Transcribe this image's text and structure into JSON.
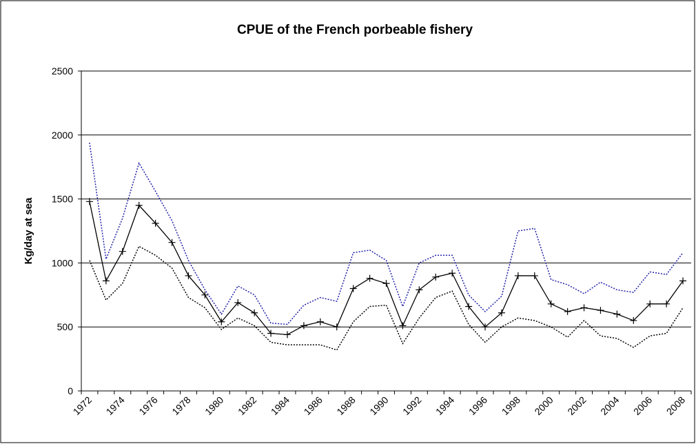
{
  "chart_data": {
    "type": "line",
    "title": "CPUE of the French porbeable fishery",
    "y_label": "Kg/day at sea",
    "categories": [
      "1972",
      null,
      "1974",
      null,
      "1976",
      null,
      "1978",
      null,
      "1980",
      null,
      "1982",
      null,
      "1984",
      null,
      "1986",
      null,
      "1988",
      null,
      "1990",
      null,
      "1992",
      null,
      "1994",
      null,
      "1996",
      null,
      "1998",
      null,
      "2000",
      null,
      "2002",
      null,
      "2004",
      null,
      "2006",
      null,
      "2008"
    ],
    "series": [
      {
        "color": "#000000",
        "dash": false,
        "marker": "plus",
        "values": [
          1480,
          860,
          1090,
          1450,
          1310,
          1160,
          900,
          750,
          540,
          690,
          610,
          450,
          440,
          510,
          540,
          500,
          800,
          880,
          840,
          510,
          790,
          890,
          920,
          660,
          500,
          610,
          900,
          900,
          680,
          620,
          650,
          630,
          600,
          550,
          680,
          680,
          860
        ]
      },
      {
        "color": "#1f1fa8",
        "dash": true,
        "marker": "none",
        "values": [
          1940,
          1030,
          1350,
          1780,
          1560,
          1330,
          1020,
          790,
          600,
          820,
          750,
          530,
          520,
          670,
          730,
          700,
          1080,
          1100,
          1020,
          660,
          1000,
          1060,
          1060,
          750,
          620,
          740,
          1250,
          1270,
          870,
          830,
          760,
          850,
          790,
          770,
          930,
          910,
          1080
        ]
      },
      {
        "color": "#000000",
        "dash": true,
        "marker": "none",
        "values": [
          1020,
          710,
          840,
          1130,
          1060,
          960,
          730,
          650,
          480,
          570,
          510,
          380,
          360,
          360,
          360,
          320,
          540,
          660,
          670,
          370,
          570,
          730,
          780,
          520,
          380,
          500,
          570,
          550,
          500,
          420,
          550,
          430,
          410,
          340,
          430,
          450,
          650
        ]
      }
    ],
    "ylim": [
      0,
      2500
    ],
    "yticks": [
      0,
      500,
      1000,
      1500,
      2000,
      2500
    ],
    "grid": true
  }
}
